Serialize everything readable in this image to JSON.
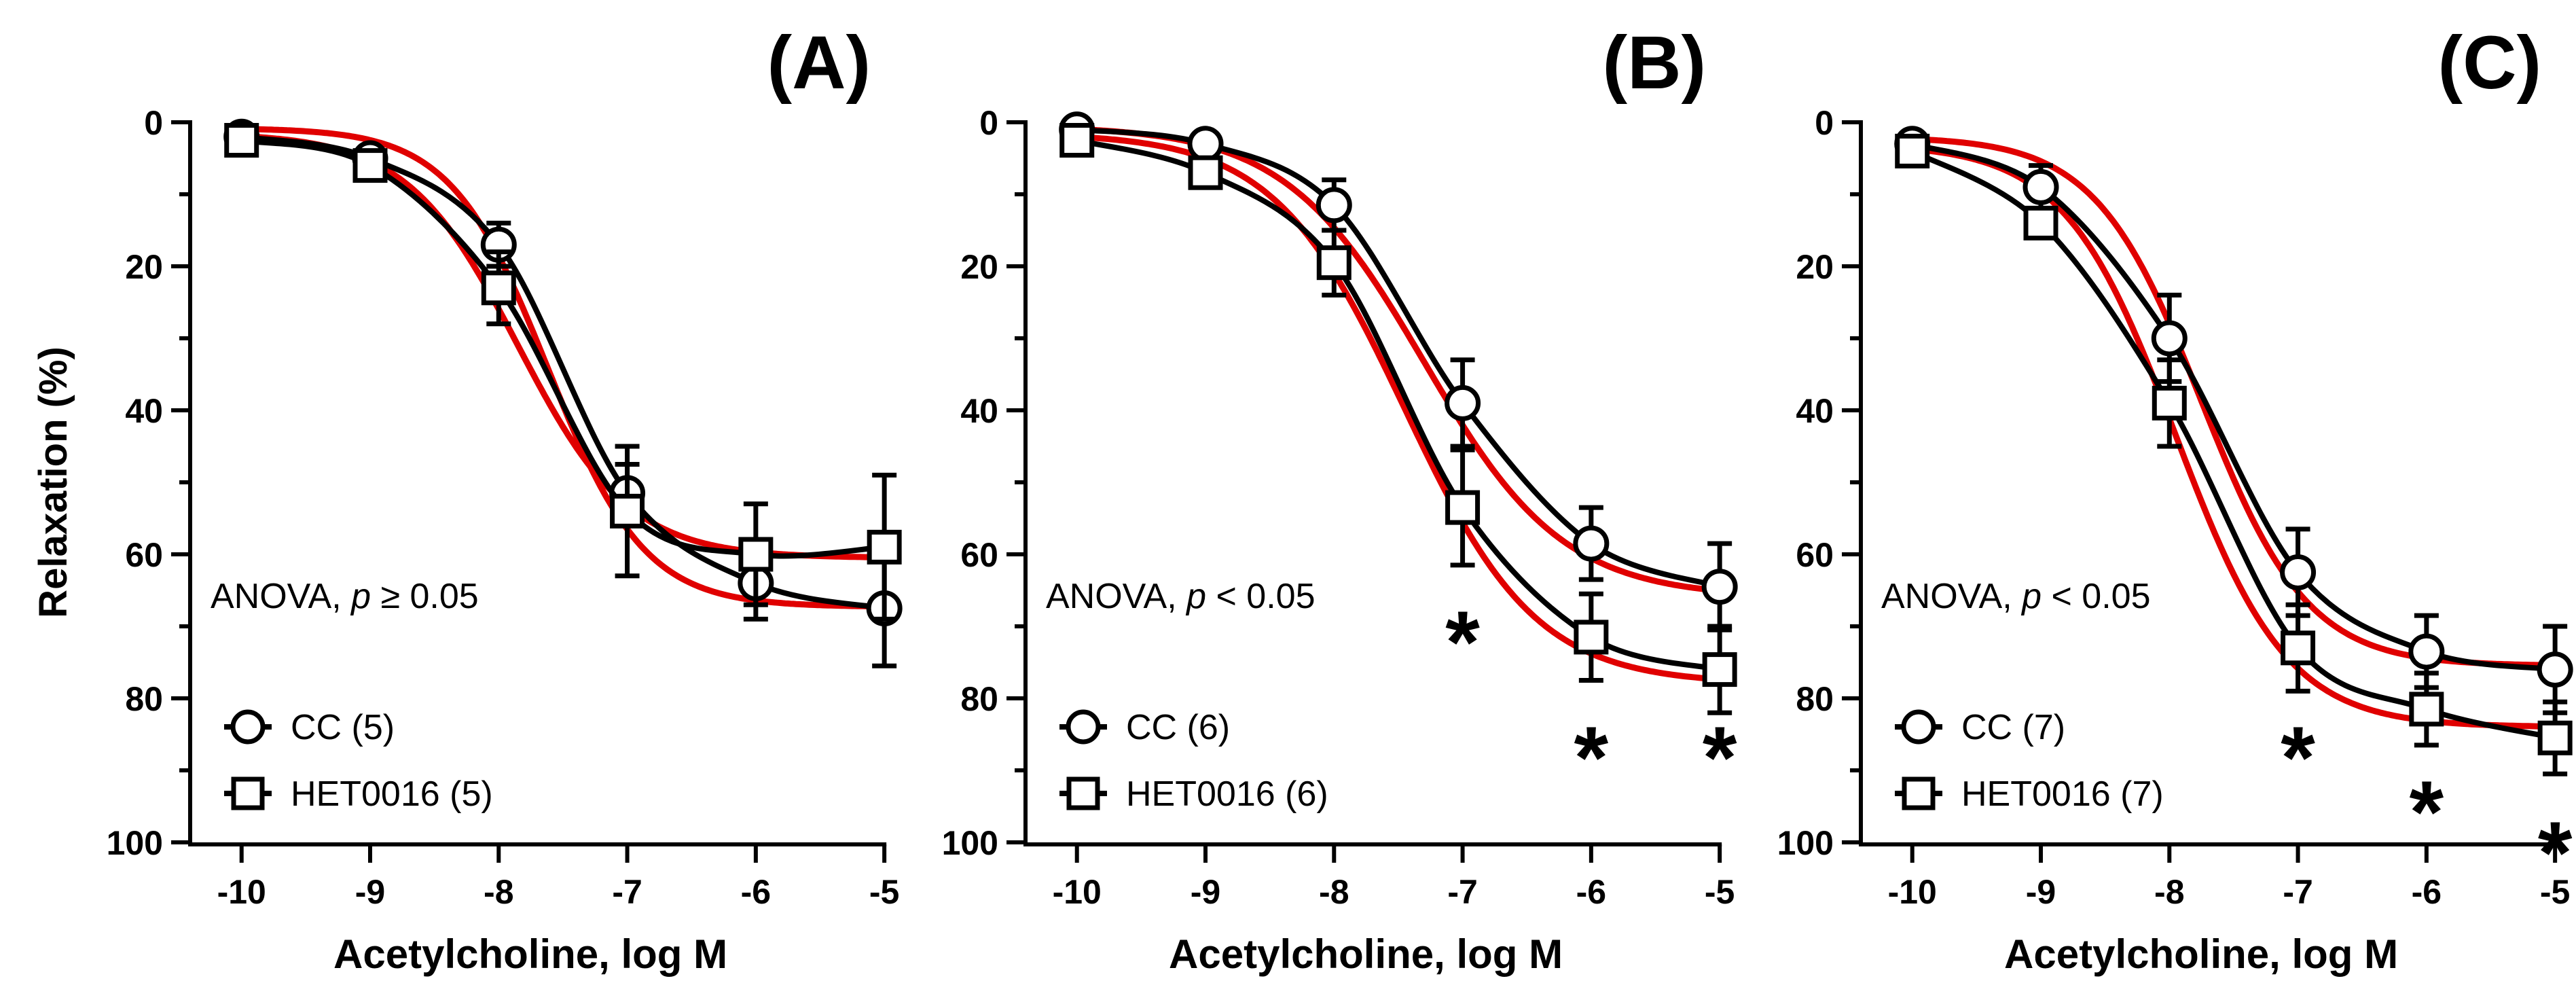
{
  "chart_data": [
    {
      "type": "line",
      "panel_label": "(A)",
      "xlabel": "Acetylcholine, log M",
      "ylabel": "Relaxation (%)",
      "x": [
        -10,
        -9,
        -8,
        -7,
        -6,
        -5
      ],
      "x_tick_labels": [
        "-10",
        "-9",
        "-8",
        "-7",
        "-6",
        "-5"
      ],
      "xlim": [
        -10.4,
        -4.8
      ],
      "ylim": [
        0,
        100
      ],
      "y_inverted": true,
      "y_ticks": [
        0,
        20,
        40,
        60,
        80,
        100
      ],
      "y_tick_labels": [
        "0",
        "20",
        "40",
        "60",
        "80",
        "100"
      ],
      "annotation": {
        "prefix": "ANOVA, ",
        "p": "p",
        "suffix": " ≥ 0.05"
      },
      "legend_position": "bottom-left",
      "series": [
        {
          "name": "CC (5)",
          "marker": "circle",
          "values": [
            2,
            5,
            17,
            51.5,
            64,
            67.5
          ],
          "errors": [
            1,
            1,
            3,
            4,
            5,
            8
          ],
          "fit": {
            "bottom": 0.8,
            "top": 67.3,
            "logEC50": -7.62,
            "hill": 1.15
          }
        },
        {
          "name": "HET0016 (5)",
          "marker": "square",
          "values": [
            2.5,
            6,
            23,
            54,
            60,
            59
          ],
          "errors": [
            1,
            1,
            5,
            9,
            7,
            10
          ],
          "fit": {
            "bottom": 1.5,
            "top": 60.5,
            "logEC50": -7.85,
            "hill": 1.0
          }
        }
      ],
      "significance": []
    },
    {
      "type": "line",
      "panel_label": "(B)",
      "xlabel": "Acetylcholine, log M",
      "ylabel": "",
      "x": [
        -10,
        -9,
        -8,
        -7,
        -6,
        -5
      ],
      "x_tick_labels": [
        "-10",
        "-9",
        "-8",
        "-7",
        "-6",
        "-5"
      ],
      "xlim": [
        -10.4,
        -4.8
      ],
      "ylim": [
        0,
        100
      ],
      "y_inverted": true,
      "y_ticks": [
        0,
        20,
        40,
        60,
        80,
        100
      ],
      "y_tick_labels": [
        "0",
        "20",
        "40",
        "60",
        "80",
        "100"
      ],
      "annotation": {
        "prefix": "ANOVA, ",
        "p": "p",
        "suffix": " < 0.05"
      },
      "legend_position": "bottom-left",
      "series": [
        {
          "name": "CC (6)",
          "marker": "circle",
          "values": [
            1,
            3,
            11.5,
            39,
            58.5,
            64.5
          ],
          "errors": [
            1,
            1,
            3.5,
            6,
            5,
            6
          ],
          "fit": {
            "bottom": 0.5,
            "top": 66,
            "logEC50": -7.3,
            "hill": 0.8
          }
        },
        {
          "name": "HET0016 (6)",
          "marker": "square",
          "values": [
            2.5,
            7,
            19.5,
            53.5,
            71.5,
            76
          ],
          "errors": [
            1,
            1,
            4.5,
            8,
            6,
            6
          ],
          "fit": {
            "bottom": 1.5,
            "top": 78,
            "logEC50": -7.45,
            "hill": 0.85
          }
        }
      ],
      "significance": [
        {
          "x": -7,
          "label": "*",
          "level": "high"
        },
        {
          "x": -6,
          "label": "*",
          "level": "low"
        },
        {
          "x": -5,
          "label": "*",
          "level": "low"
        }
      ]
    },
    {
      "type": "line",
      "panel_label": "(C)",
      "xlabel": "Acetylcholine, log M",
      "ylabel": "",
      "x": [
        -10,
        -9,
        -8,
        -7,
        -6,
        -5
      ],
      "x_tick_labels": [
        "-10",
        "-9",
        "-8",
        "-7",
        "-6",
        "-5"
      ],
      "xlim": [
        -10.4,
        -4.8
      ],
      "ylim": [
        0,
        100
      ],
      "y_inverted": true,
      "y_ticks": [
        0,
        20,
        40,
        60,
        80,
        100
      ],
      "y_tick_labels": [
        "0",
        "20",
        "40",
        "60",
        "80",
        "100"
      ],
      "annotation": {
        "prefix": "ANOVA, ",
        "p": "p",
        "suffix": " < 0.05"
      },
      "legend_position": "bottom-left",
      "series": [
        {
          "name": "CC (7)",
          "marker": "circle",
          "values": [
            3,
            9,
            30,
            62.5,
            73.5,
            76
          ],
          "errors": [
            1,
            3,
            6,
            6,
            5,
            6
          ],
          "fit": {
            "bottom": 2,
            "top": 75.5,
            "logEC50": -7.75,
            "hill": 1.05
          }
        },
        {
          "name": "HET0016 (7)",
          "marker": "square",
          "values": [
            4,
            14,
            39,
            73,
            81.5,
            85.5
          ],
          "errors": [
            1,
            2,
            6,
            6,
            5,
            5
          ],
          "fit": {
            "bottom": 3,
            "top": 84,
            "logEC50": -7.95,
            "hill": 1.0
          }
        }
      ],
      "significance": [
        {
          "x": -7,
          "label": "*",
          "level": "low"
        },
        {
          "x": -6,
          "label": "*",
          "level": "lower"
        },
        {
          "x": -5,
          "label": "*",
          "level": "lowest"
        }
      ]
    }
  ]
}
